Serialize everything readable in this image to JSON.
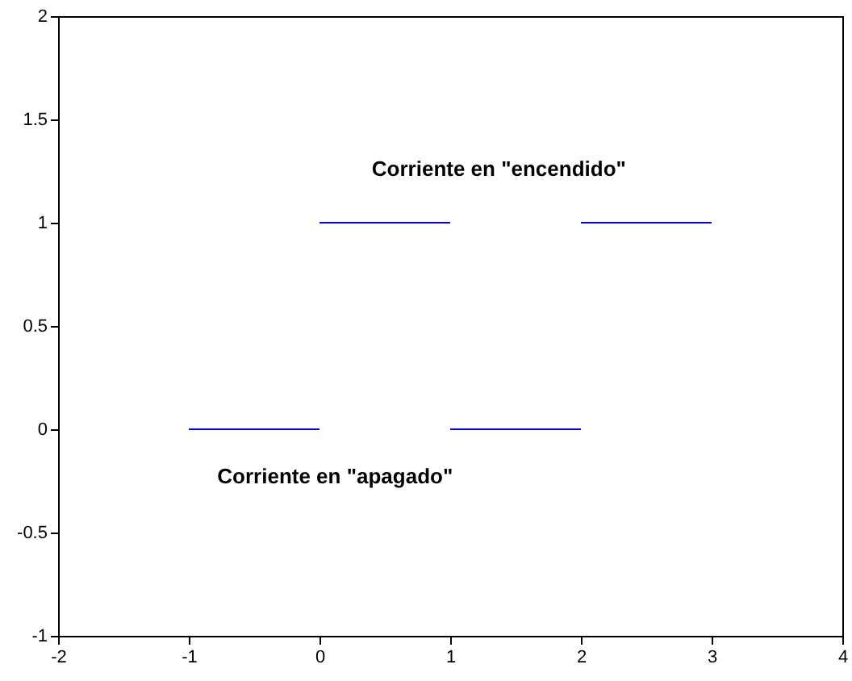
{
  "chart_data": {
    "type": "line",
    "series": [
      {
        "color": "#0000ff",
        "x": [
          -1,
          0
        ],
        "values": [
          0,
          0
        ]
      },
      {
        "color": "#0000ff",
        "x": [
          0,
          1
        ],
        "values": [
          1,
          1
        ]
      },
      {
        "color": "#0000ff",
        "x": [
          1,
          2
        ],
        "values": [
          0,
          0
        ]
      },
      {
        "color": "#0000ff",
        "x": [
          2,
          3
        ],
        "values": [
          1,
          1
        ]
      }
    ],
    "xlim": [
      -2,
      4
    ],
    "xticks": [
      -2,
      -1,
      0,
      1,
      2,
      3,
      4
    ],
    "ylim": [
      -1,
      2
    ],
    "yticks": [
      -1,
      -0.5,
      0,
      0.5,
      1,
      1.5,
      2
    ],
    "grid": false,
    "marker": "none",
    "line_style": "solid",
    "annotations": [
      "Corriente en \"encendido\"",
      "Corriente en \"apagado\""
    ]
  }
}
